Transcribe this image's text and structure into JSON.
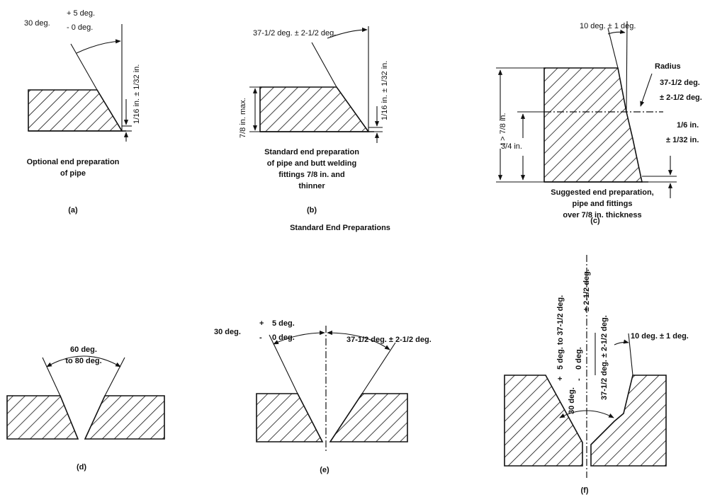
{
  "title": "Standard End Preparations",
  "panels": {
    "a": {
      "label": "(a)",
      "caption": [
        "Optional end preparation",
        "of pipe"
      ],
      "angle_main": "30 deg.",
      "angle_plus": "+ 5 deg.",
      "angle_minus": "- 0 deg.",
      "land": "1/16 in. ± 1/32 in."
    },
    "b": {
      "label": "(b)",
      "caption": [
        "Standard end preparation",
        "of pipe and butt welding",
        "fittings 7/8 in. and",
        "thinner"
      ],
      "angle": "37-1/2 deg. ± 2-1/2 deg.",
      "land": "1/16 in. ± 1/32 in.",
      "thickness": "7/8 in. max."
    },
    "c": {
      "label": "(c)",
      "caption": [
        "Suggested end preparation,",
        "pipe and fittings",
        "over 7/8 in. thickness"
      ],
      "top_angle": "10 deg. ± 1 deg.",
      "radius": "Radius",
      "angle_main": "37-1/2 deg.",
      "angle_tol": "± 2-1/2 deg.",
      "land_main": "1/6 in.",
      "land_tol": "± 1/32 in.",
      "thickness": "t > 7/8 in.",
      "lower_dim": "3/4 in."
    },
    "d": {
      "label": "(d)",
      "angle_line1": "60 deg.",
      "angle_line2": "to 80 deg."
    },
    "e": {
      "label": "(e)",
      "left_main": "30 deg.",
      "left_plus": "+",
      "left_plus_val": "5 deg.",
      "left_minus": "-",
      "left_minus_val": "0 deg.",
      "right_angle": "37-1/2 deg. ± 2-1/2 deg."
    },
    "f": {
      "label": "(f)",
      "left_angle_main": "30 deg.",
      "left_plus": "+",
      "left_plus_val": "5 deg. to  37-1/2 deg.",
      "left_minus": "-",
      "left_minus_val": "0 deg.",
      "left_tol": "± 2-1/2 deg.",
      "mid_angle": "37-1/2 deg. ± 2-1/2 deg.",
      "top_angle": "10 deg. ± 1 deg."
    }
  }
}
